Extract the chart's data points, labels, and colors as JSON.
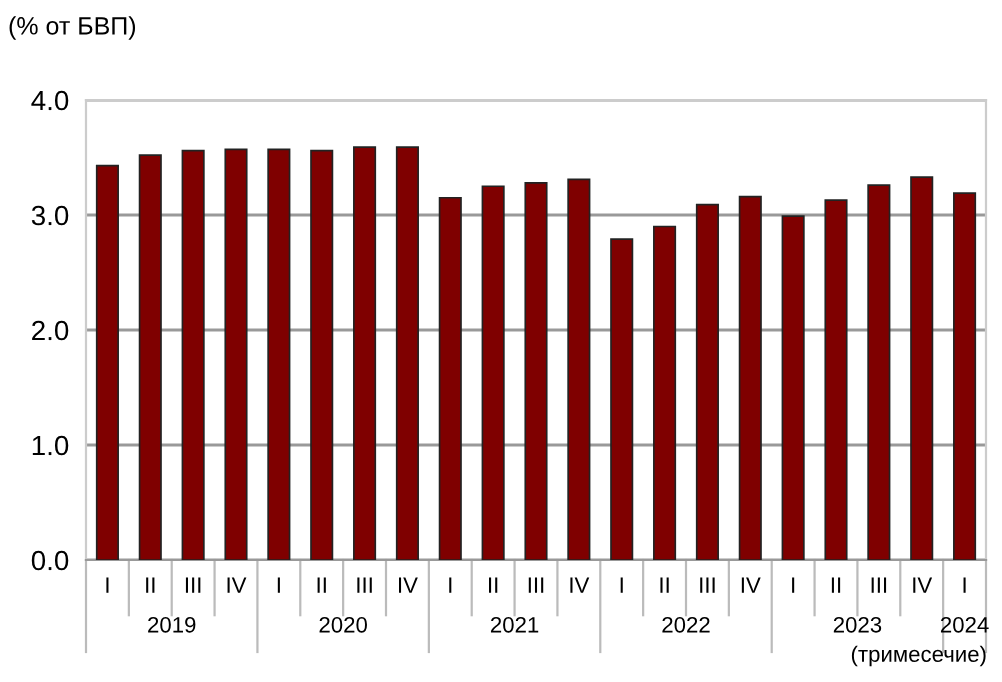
{
  "chart_data": {
    "type": "bar",
    "ylabel": "(% от БВП)",
    "categories": [
      "I",
      "II",
      "III",
      "IV",
      "I",
      "II",
      "III",
      "IV",
      "I",
      "II",
      "III",
      "IV",
      "I",
      "II",
      "III",
      "IV",
      "I",
      "II",
      "III",
      "IV",
      "I"
    ],
    "values": [
      3.43,
      3.52,
      3.56,
      3.57,
      3.57,
      3.56,
      3.59,
      3.59,
      3.15,
      3.25,
      3.28,
      3.31,
      2.79,
      2.9,
      3.09,
      3.16,
      2.99,
      3.13,
      3.26,
      3.33,
      3.19
    ],
    "color": "#7f0000",
    "ylim": [
      0,
      4
    ],
    "yticks": [
      {
        "value": 0,
        "label": "0.0"
      },
      {
        "value": 1,
        "label": "1.0"
      },
      {
        "value": 2,
        "label": "2.0"
      },
      {
        "value": 3,
        "label": "3.0"
      },
      {
        "value": 4,
        "label": "4.0"
      }
    ],
    "grid": "y",
    "annotations": [
      "2019",
      "2020",
      "2021",
      "2022",
      "2023",
      "2024",
      "(тримесечие)"
    ]
  }
}
